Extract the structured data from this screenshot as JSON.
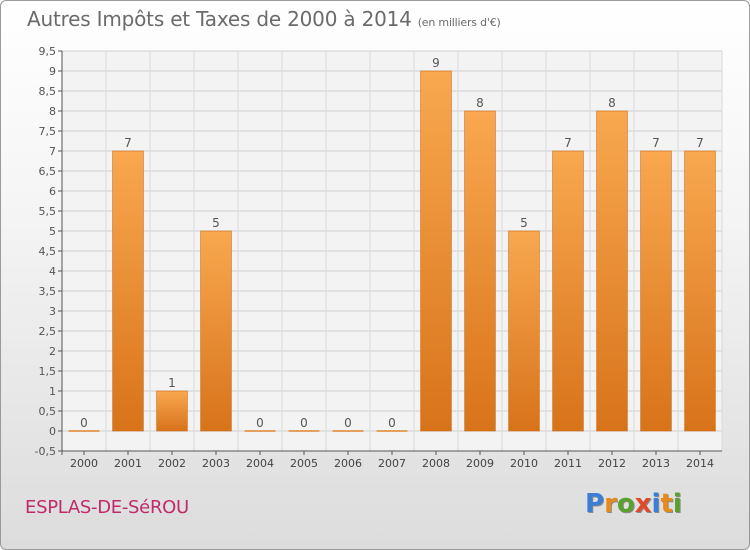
{
  "title": "Autres Impôts et Taxes de 2000 à 2014",
  "unit": "(en milliers d'€)",
  "commune": "ESPLAS-DE-SéROU",
  "logo": {
    "letters": [
      "P",
      "r",
      "o",
      "x",
      "i",
      "t",
      "i"
    ],
    "colors": [
      "#3a7fd5",
      "#e88a1a",
      "#5aa02c",
      "#e04a2a",
      "#3a7fd5",
      "#e88a1a",
      "#5aa02c"
    ]
  },
  "chart_data": {
    "type": "bar",
    "categories": [
      "2000",
      "2001",
      "2002",
      "2003",
      "2004",
      "2005",
      "2006",
      "2007",
      "2008",
      "2009",
      "2010",
      "2011",
      "2012",
      "2013",
      "2014"
    ],
    "values": [
      0,
      7,
      1,
      5,
      0,
      0,
      0,
      0,
      9,
      8,
      5,
      7,
      8,
      7,
      7
    ],
    "data_labels": [
      "0",
      "7",
      "1",
      "5",
      "0",
      "0",
      "0",
      "0",
      "9",
      "8",
      "5",
      "7",
      "8",
      "7",
      "7"
    ],
    "yticks": [
      "-0,5",
      "0",
      "0,5",
      "1",
      "1,5",
      "2",
      "2,5",
      "3",
      "3,5",
      "4",
      "4,5",
      "5",
      "5,5",
      "6",
      "6,5",
      "7",
      "7,5",
      "8",
      "8,5",
      "9",
      "9,5"
    ],
    "ylim": [
      -0.5,
      9.5
    ],
    "grid": true,
    "bar_color": "#f09a3a"
  }
}
